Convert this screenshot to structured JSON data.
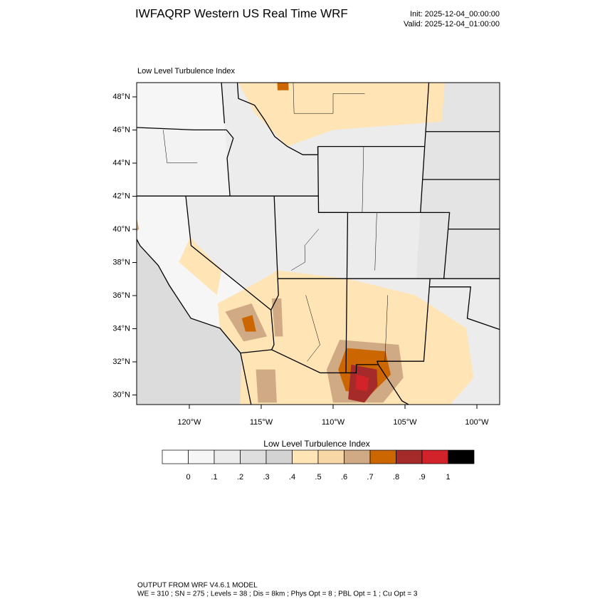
{
  "header": {
    "title": "IWFAQRP Western US Real Time WRF",
    "init": "Init: 2025-12-04_00:00:00",
    "valid": "Valid: 2025-12-04_01:00:00"
  },
  "map": {
    "title": "Low Level Turbulence Index",
    "lat_labels": [
      "48°N",
      "46°N",
      "44°N",
      "42°N",
      "40°N",
      "38°N",
      "36°N",
      "34°N",
      "32°N",
      "30°N"
    ],
    "lon_labels": [
      "120°W",
      "115°W",
      "110°W",
      "105°W",
      "100°W"
    ]
  },
  "colorbar": {
    "title": "Low Level Turbulence Index",
    "labels": [
      "0",
      ".1",
      ".2",
      ".3",
      ".4",
      ".5",
      ".6",
      ".7",
      ".8",
      ".9",
      "1"
    ],
    "colors": [
      "#ffffff",
      "#f6f6f6",
      "#ececec",
      "#dedede",
      "#d3d3d3",
      "#ffe4b5",
      "#f8d7a6",
      "#cfaa84",
      "#cc6600",
      "#a52a2a",
      "#d2232a",
      "#000000"
    ]
  },
  "footer": {
    "line1": "OUTPUT FROM WRF V4.6.1 MODEL",
    "line2": "WE = 310 ; SN = 275 ; Levels = 38 ; Dis = 8km ; Phys Opt = 8 ; PBL Opt = 1 ; Cu Opt = 3"
  }
}
